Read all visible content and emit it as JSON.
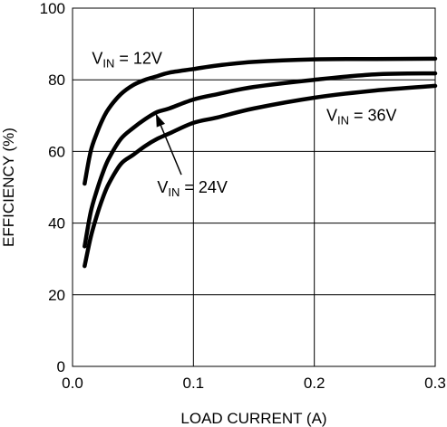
{
  "chart_data": {
    "type": "line",
    "title": "",
    "xlabel": "LOAD CURRENT (A)",
    "ylabel": "EFFICIENCY (%)",
    "xlim": [
      0,
      0.3
    ],
    "ylim": [
      0,
      100
    ],
    "x_ticks": [
      "0.0",
      "0.1",
      "0.2",
      "0.3"
    ],
    "y_ticks": [
      "0",
      "20",
      "40",
      "60",
      "80",
      "100"
    ],
    "grid": true,
    "line_color": "#000000",
    "series": [
      {
        "name": "VIN = 12V",
        "x": [
          0.01,
          0.015,
          0.02,
          0.025,
          0.03,
          0.04,
          0.05,
          0.06,
          0.07,
          0.08,
          0.1,
          0.12,
          0.15,
          0.2,
          0.25,
          0.3
        ],
        "y": [
          51,
          60,
          65,
          69,
          72,
          76,
          78.5,
          80,
          81,
          82,
          83,
          84,
          85,
          85.7,
          85.8,
          85.9
        ]
      },
      {
        "name": "VIN = 24V",
        "x": [
          0.01,
          0.015,
          0.02,
          0.025,
          0.03,
          0.04,
          0.05,
          0.06,
          0.07,
          0.08,
          0.1,
          0.12,
          0.15,
          0.2,
          0.25,
          0.3
        ],
        "y": [
          33.5,
          43,
          49,
          54,
          58,
          63.5,
          66.5,
          69,
          71,
          72,
          74.5,
          76,
          78,
          80,
          81.5,
          81.8
        ]
      },
      {
        "name": "VIN = 36V",
        "x": [
          0.01,
          0.015,
          0.02,
          0.025,
          0.03,
          0.04,
          0.05,
          0.06,
          0.07,
          0.08,
          0.1,
          0.12,
          0.15,
          0.2,
          0.25,
          0.3
        ],
        "y": [
          28,
          36,
          42,
          47,
          51,
          56.5,
          59,
          61.5,
          63.5,
          65,
          68,
          69.5,
          72,
          75,
          77,
          78.3
        ]
      }
    ],
    "annotations": [
      {
        "series": "VIN = 12V",
        "base": "V",
        "sub": "IN",
        "suffix": " = 12V",
        "at_x": 0.016,
        "at_y": 84.5,
        "anchor": "start"
      },
      {
        "series": "VIN = 24V",
        "base": "V",
        "sub": "IN",
        "suffix": " = 24V",
        "at_x": 0.07,
        "at_y": 48.5,
        "anchor": "start",
        "arrow_to_x": 0.069,
        "arrow_to_y": 70.5,
        "arrow_from_x": 0.09,
        "arrow_from_y": 53.5
      },
      {
        "series": "VIN = 36V",
        "base": "V",
        "sub": "IN",
        "suffix": " = 36V",
        "at_x": 0.21,
        "at_y": 68.5,
        "anchor": "start"
      }
    ]
  }
}
